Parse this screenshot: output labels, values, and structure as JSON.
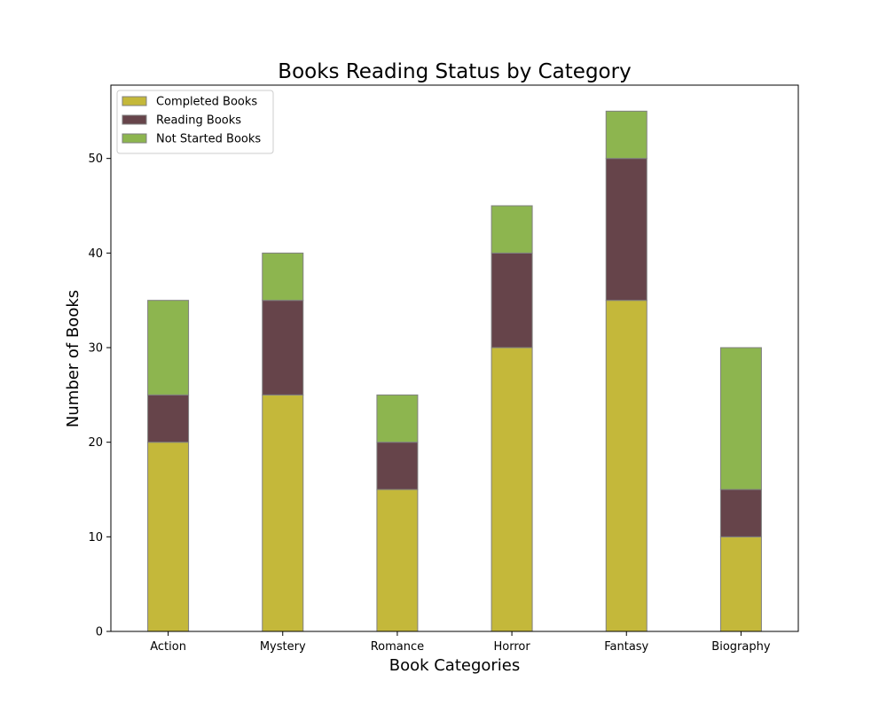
{
  "chart_data": {
    "type": "bar",
    "stacked": true,
    "title": "Books Reading Status by Category",
    "xlabel": "Book Categories",
    "ylabel": "Number of Books",
    "categories": [
      "Action",
      "Mystery",
      "Romance",
      "Horror",
      "Fantasy",
      "Biography"
    ],
    "series": [
      {
        "name": "Completed Books",
        "color": "#c4b83a",
        "values": [
          20,
          25,
          15,
          30,
          35,
          10
        ]
      },
      {
        "name": "Reading Books",
        "color": "#66444a",
        "values": [
          5,
          10,
          5,
          10,
          15,
          5
        ]
      },
      {
        "name": "Not Started Books",
        "color": "#8db54f",
        "values": [
          10,
          5,
          5,
          5,
          5,
          15
        ]
      }
    ],
    "ylim": [
      0,
      57.75
    ],
    "yticks": [
      0,
      10,
      20,
      30,
      40,
      50
    ],
    "grid": false,
    "legend_position": "top-left",
    "bar_edge_color": "#808080"
  }
}
